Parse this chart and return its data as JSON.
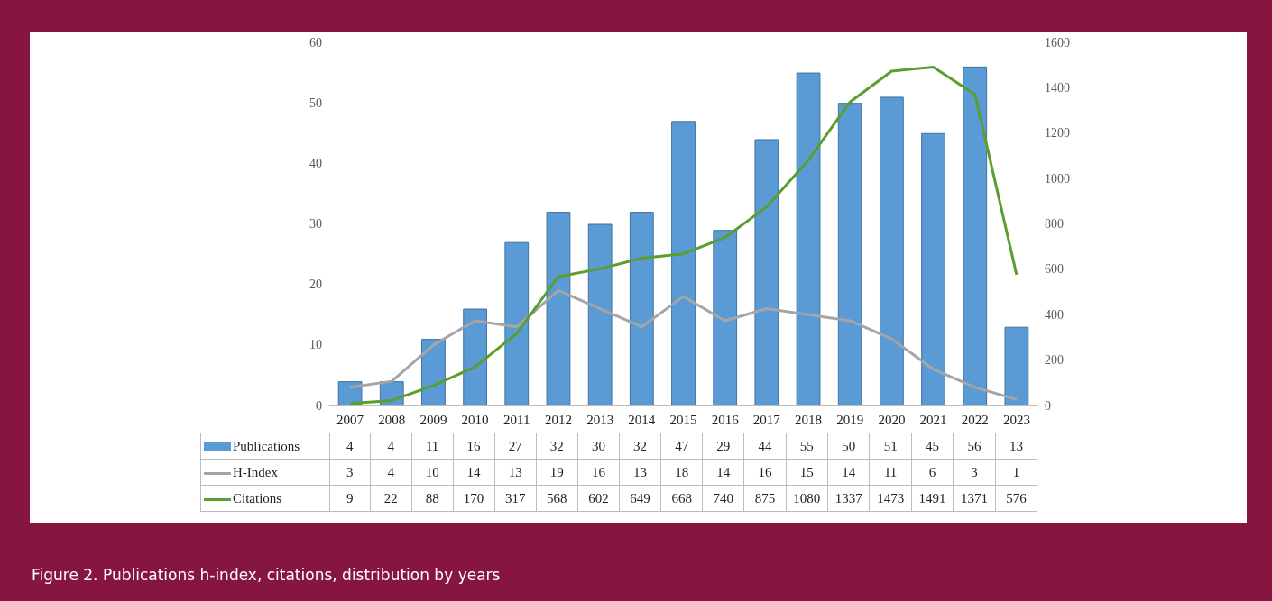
{
  "chart_data": {
    "type": "bar",
    "categories": [
      "2007",
      "2008",
      "2009",
      "2010",
      "2011",
      "2012",
      "2013",
      "2014",
      "2015",
      "2016",
      "2017",
      "2018",
      "2019",
      "2020",
      "2021",
      "2022",
      "2023"
    ],
    "series": [
      {
        "name": "Publications",
        "color": "#5b9bd5",
        "values": [
          4,
          4,
          11,
          16,
          27,
          32,
          30,
          32,
          47,
          29,
          44,
          55,
          50,
          51,
          45,
          56,
          13
        ]
      },
      {
        "name": "H-Index",
        "type": "line",
        "color": "#a5a5a5",
        "values": [
          3,
          4,
          10,
          14,
          13,
          19,
          16,
          13,
          18,
          14,
          16,
          15,
          14,
          11,
          6,
          3,
          1
        ]
      },
      {
        "name": "Citations",
        "type": "line",
        "axis": "y2",
        "color": "#5a9e2f",
        "values": [
          9,
          22,
          88,
          170,
          317,
          568,
          602,
          649,
          668,
          740,
          875,
          1080,
          1337,
          1473,
          1491,
          1371,
          576
        ]
      }
    ],
    "ylim": [
      0,
      60
    ],
    "yticks": [
      0,
      10,
      20,
      30,
      40,
      50,
      60
    ],
    "y2lim": [
      0,
      1600
    ],
    "y2ticks": [
      0,
      200,
      400,
      600,
      800,
      1000,
      1200,
      1400,
      1600
    ],
    "grid": false,
    "legend": "bottom",
    "marker": "none",
    "data_labels": true,
    "annotations": [
      "Figure 2. Publications h-index, citations, distribution by years"
    ]
  }
}
